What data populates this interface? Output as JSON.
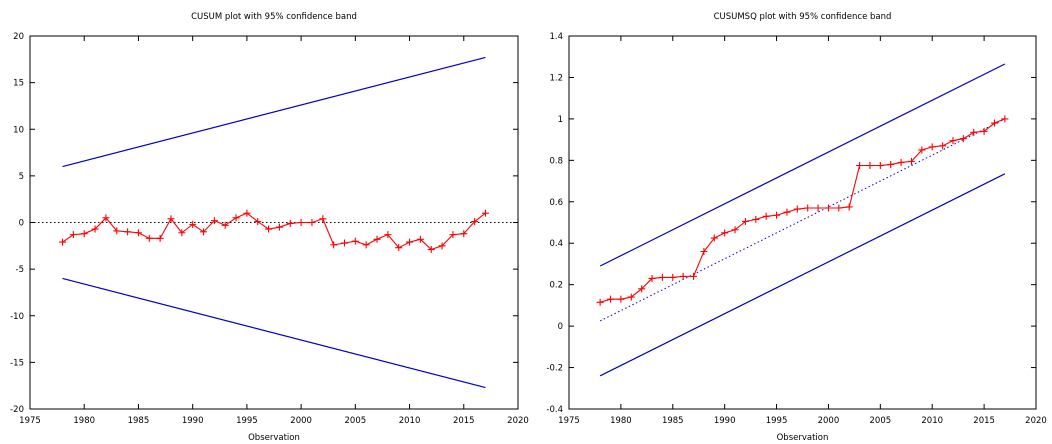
{
  "chart_data": [
    {
      "type": "line",
      "title": "CUSUM plot with 95% confidence band",
      "xlabel": "Observation",
      "ylabel": "",
      "xlim": [
        1975,
        2020
      ],
      "ylim": [
        -20,
        20
      ],
      "xticks": [
        1975,
        1980,
        1985,
        1990,
        1995,
        2000,
        2005,
        2010,
        2015,
        2020
      ],
      "yticks": [
        -20,
        -15,
        -10,
        -5,
        0,
        5,
        10,
        15,
        20
      ],
      "grid": false,
      "legend": "none",
      "colors": {
        "series": "#ff0000",
        "band": "#0000cc",
        "reference": "#000000"
      },
      "x": [
        1978,
        1979,
        1980,
        1981,
        1982,
        1983,
        1984,
        1985,
        1986,
        1987,
        1988,
        1989,
        1990,
        1991,
        1992,
        1993,
        1994,
        1995,
        1996,
        1997,
        1998,
        1999,
        2000,
        2001,
        2002,
        2003,
        2004,
        2005,
        2006,
        2007,
        2008,
        2009,
        2010,
        2011,
        2012,
        2013,
        2014,
        2015,
        2016,
        2017
      ],
      "series": [
        {
          "values": [
            -2.1,
            -1.3,
            -1.2,
            -0.7,
            0.5,
            -0.9,
            -1.0,
            -1.1,
            -1.7,
            -1.7,
            0.4,
            -1.1,
            -0.2,
            -1.0,
            0.2,
            -0.3,
            0.5,
            1.0,
            0.1,
            -0.7,
            -0.5,
            -0.1,
            0.0,
            0.0,
            0.4,
            -2.4,
            -2.2,
            -2.0,
            -2.4,
            -1.8,
            -1.3,
            -2.7,
            -2.1,
            -1.8,
            -2.9,
            -2.5,
            -1.3,
            -1.2,
            0.1,
            1.0
          ],
          "style": "line-markers"
        }
      ],
      "band_upper": {
        "x": [
          1978,
          2017
        ],
        "y": [
          6.0,
          17.7
        ]
      },
      "band_lower": {
        "x": [
          1978,
          2017
        ],
        "y": [
          -6.0,
          -17.7
        ]
      },
      "reference_line": {
        "x": [
          1975,
          2020
        ],
        "y": [
          0,
          0
        ],
        "style": "dotted"
      }
    },
    {
      "type": "line",
      "title": "CUSUMSQ plot with 95% confidence band",
      "xlabel": "Observation",
      "ylabel": "",
      "xlim": [
        1975,
        2020
      ],
      "ylim": [
        -0.4,
        1.4
      ],
      "xticks": [
        1975,
        1980,
        1985,
        1990,
        1995,
        2000,
        2005,
        2010,
        2015,
        2020
      ],
      "yticks": [
        -0.4,
        -0.2,
        0,
        0.2,
        0.4,
        0.6,
        0.8,
        1,
        1.2,
        1.4
      ],
      "grid": false,
      "legend": "none",
      "colors": {
        "series": "#ff0000",
        "band": "#0000cc",
        "reference": "#0000cc"
      },
      "x": [
        1978,
        1979,
        1980,
        1981,
        1982,
        1983,
        1984,
        1985,
        1986,
        1987,
        1988,
        1989,
        1990,
        1991,
        1992,
        1993,
        1994,
        1995,
        1996,
        1997,
        1998,
        1999,
        2000,
        2001,
        2002,
        2003,
        2004,
        2005,
        2006,
        2007,
        2008,
        2009,
        2010,
        2011,
        2012,
        2013,
        2014,
        2015,
        2016,
        2017
      ],
      "series": [
        {
          "values": [
            0.115,
            0.13,
            0.13,
            0.14,
            0.18,
            0.23,
            0.235,
            0.235,
            0.24,
            0.24,
            0.36,
            0.425,
            0.45,
            0.465,
            0.505,
            0.515,
            0.53,
            0.535,
            0.55,
            0.565,
            0.57,
            0.57,
            0.57,
            0.57,
            0.575,
            0.775,
            0.775,
            0.775,
            0.78,
            0.79,
            0.795,
            0.85,
            0.865,
            0.87,
            0.895,
            0.905,
            0.935,
            0.94,
            0.98,
            1.0
          ],
          "style": "line-markers"
        }
      ],
      "band_upper": {
        "x": [
          1978,
          2017
        ],
        "y": [
          0.29,
          1.265
        ]
      },
      "band_lower": {
        "x": [
          1978,
          2017
        ],
        "y": [
          -0.24,
          0.735
        ]
      },
      "reference_line": {
        "x": [
          1978,
          2017
        ],
        "y": [
          0.025,
          1.0
        ],
        "style": "dotted"
      }
    }
  ]
}
